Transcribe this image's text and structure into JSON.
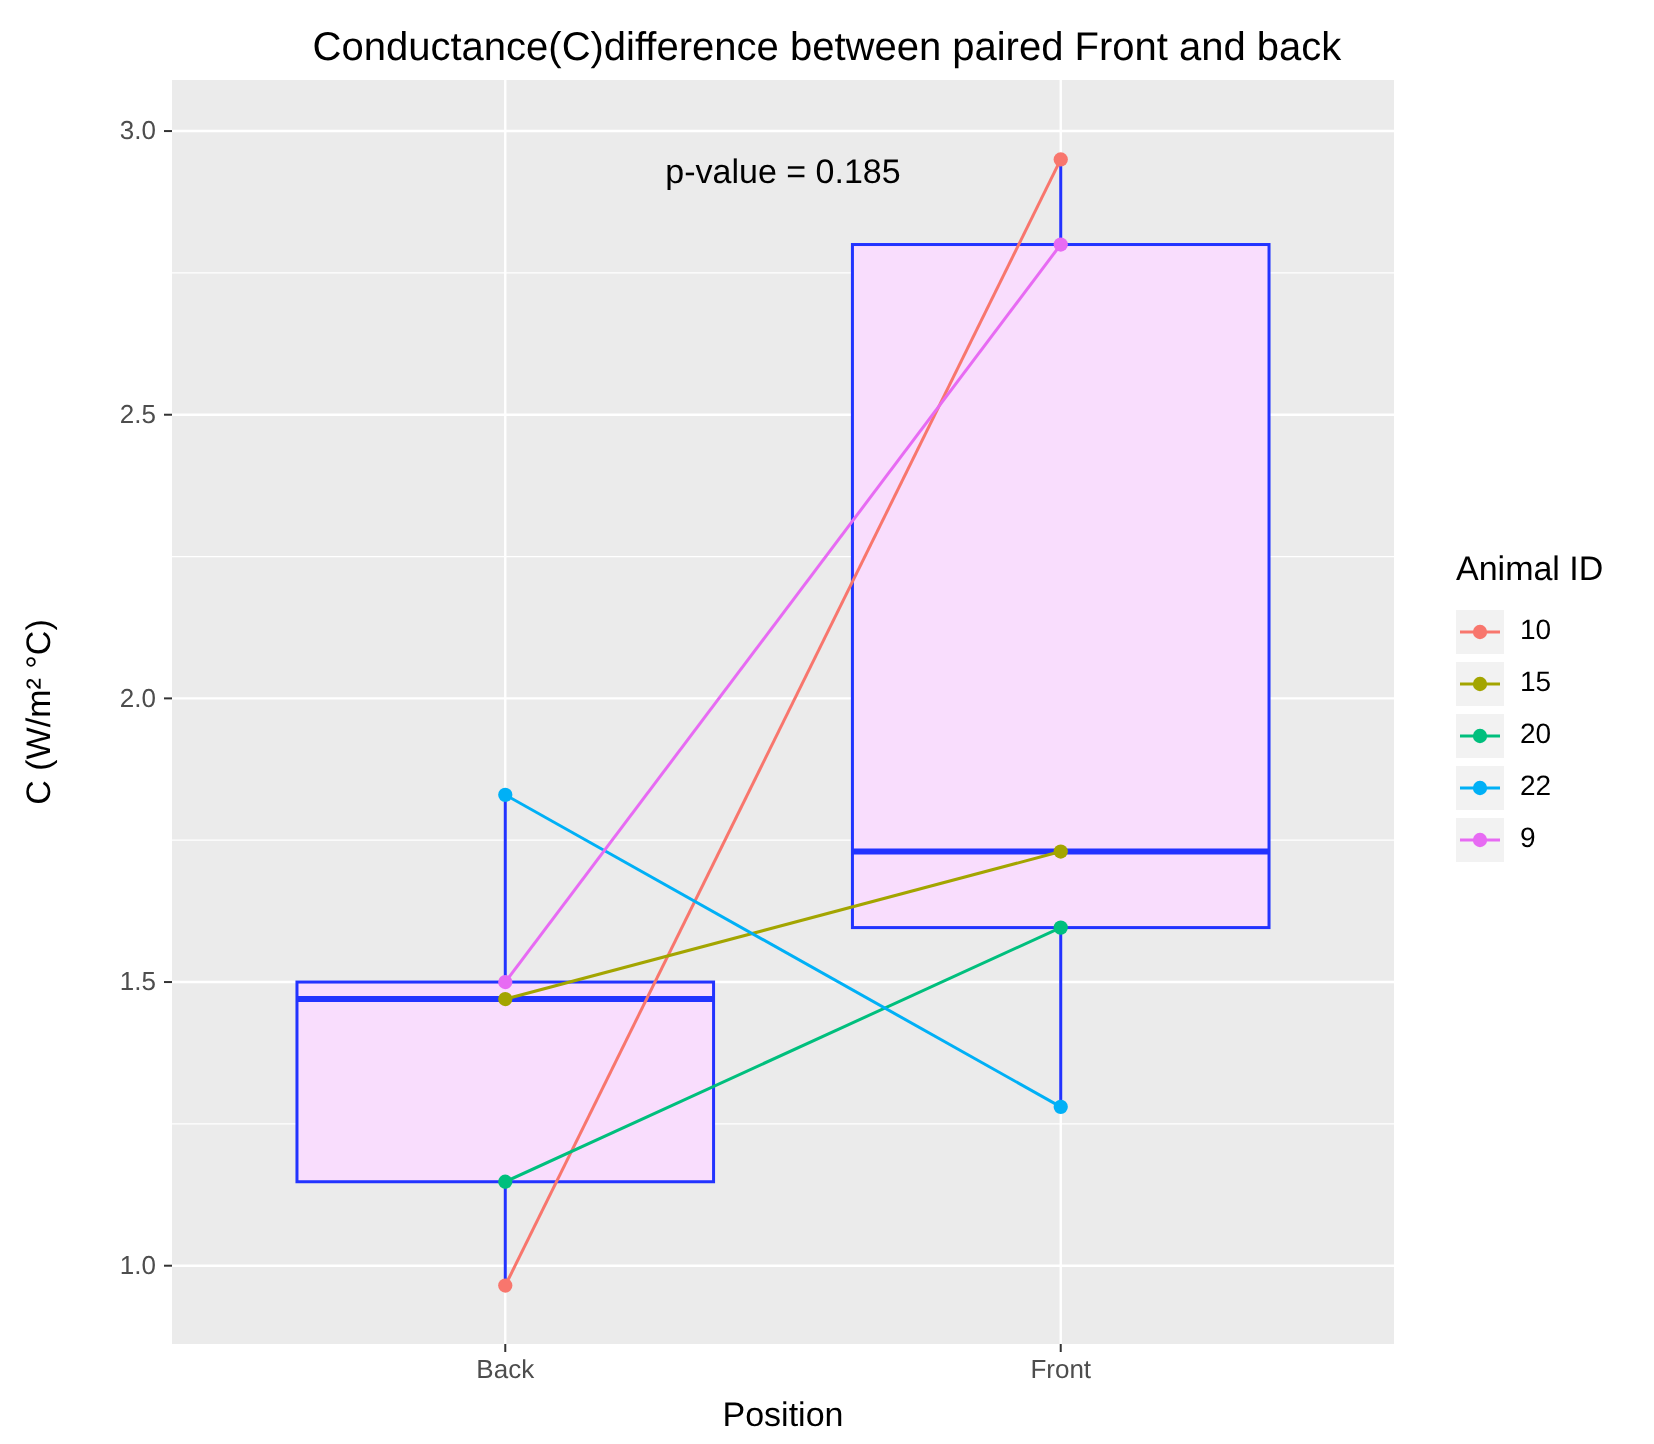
{
  "chart_data": {
    "type": "box",
    "title": "Conductance(C)difference between paired Front and back",
    "xlabel": "Position",
    "ylabel": "C (W/m² °C)",
    "legend_title": "Animal ID",
    "categories": [
      "Back",
      "Front"
    ],
    "ylim": [
      0.862,
      3.09
    ],
    "yticks": [
      {
        "value": 1,
        "label": "1.0"
      },
      {
        "value": 1.5,
        "label": "1.5"
      },
      {
        "value": 2,
        "label": "2.0"
      },
      {
        "value": 2.5,
        "label": "2.5"
      },
      {
        "value": 3,
        "label": "3.0"
      }
    ],
    "grid": true,
    "legend": "right",
    "marker": "circle",
    "annotations": [
      "p-value = 0.185"
    ],
    "series": [
      {
        "color": "#2233ff",
        "boxes": [
          {
            "low": 0.965,
            "q1": 1.148,
            "median": 1.47,
            "q3": 1.5,
            "high": 1.83
          },
          {
            "low": 1.28,
            "q1": 1.596,
            "median": 1.73,
            "q3": 2.8,
            "high": 2.95
          }
        ]
      },
      {
        "type": "line",
        "name": "10",
        "color": "#F8766D",
        "x": [
          "Back",
          "Front"
        ],
        "values": [
          0.965,
          2.95
        ]
      },
      {
        "type": "line",
        "name": "15",
        "color": "#A3A500",
        "x": [
          "Back",
          "Front"
        ],
        "values": [
          1.47,
          1.73
        ]
      },
      {
        "type": "line",
        "name": "20",
        "color": "#00BF7D",
        "x": [
          "Back",
          "Front"
        ],
        "values": [
          1.148,
          1.596
        ]
      },
      {
        "type": "line",
        "name": "22",
        "color": "#00B0F6",
        "x": [
          "Back",
          "Front"
        ],
        "values": [
          1.83,
          1.28
        ]
      },
      {
        "type": "line",
        "name": "9",
        "color": "#E76BF3",
        "x": [
          "Back",
          "Front"
        ],
        "values": [
          1.5,
          2.8
        ]
      }
    ]
  }
}
